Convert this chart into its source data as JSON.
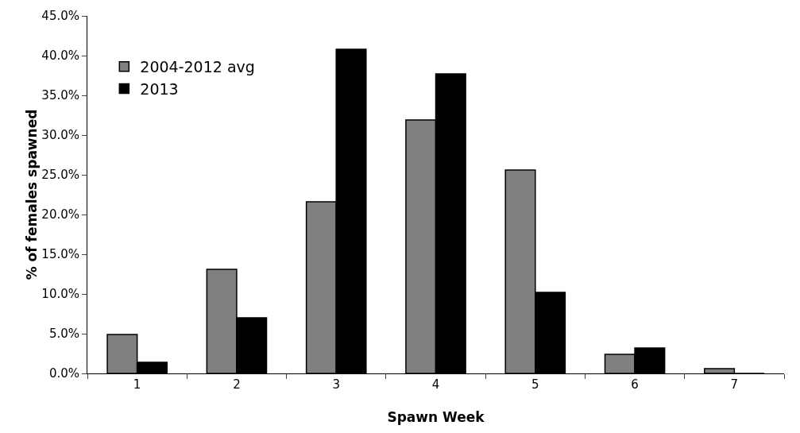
{
  "chart_data": {
    "type": "bar",
    "xlabel": "Spawn Week",
    "ylabel": "% of females spawned",
    "categories": [
      "1",
      "2",
      "3",
      "4",
      "5",
      "6",
      "7"
    ],
    "series": [
      {
        "name": "2004-2012 avg",
        "color": "#808080",
        "values": [
          4.9,
          13.1,
          21.6,
          31.9,
          25.6,
          2.4,
          0.6
        ]
      },
      {
        "name": "2013",
        "color": "#000000",
        "values": [
          1.4,
          7.0,
          40.8,
          37.7,
          10.2,
          3.2,
          0
        ]
      }
    ],
    "ylim": [
      0,
      45
    ],
    "yticks": [
      {
        "value": 0,
        "label": "0.0%"
      },
      {
        "value": 5,
        "label": "5.0%"
      },
      {
        "value": 10,
        "label": "10.0%"
      },
      {
        "value": 15,
        "label": "15.0%"
      },
      {
        "value": 20,
        "label": "20.0%"
      },
      {
        "value": 25,
        "label": "25.0%"
      },
      {
        "value": 30,
        "label": "30.0%"
      },
      {
        "value": 35,
        "label": "35.0%"
      },
      {
        "value": 40,
        "label": "40.0%"
      },
      {
        "value": 45,
        "label": "45.0%"
      }
    ],
    "grid": false,
    "legend": "top left"
  }
}
